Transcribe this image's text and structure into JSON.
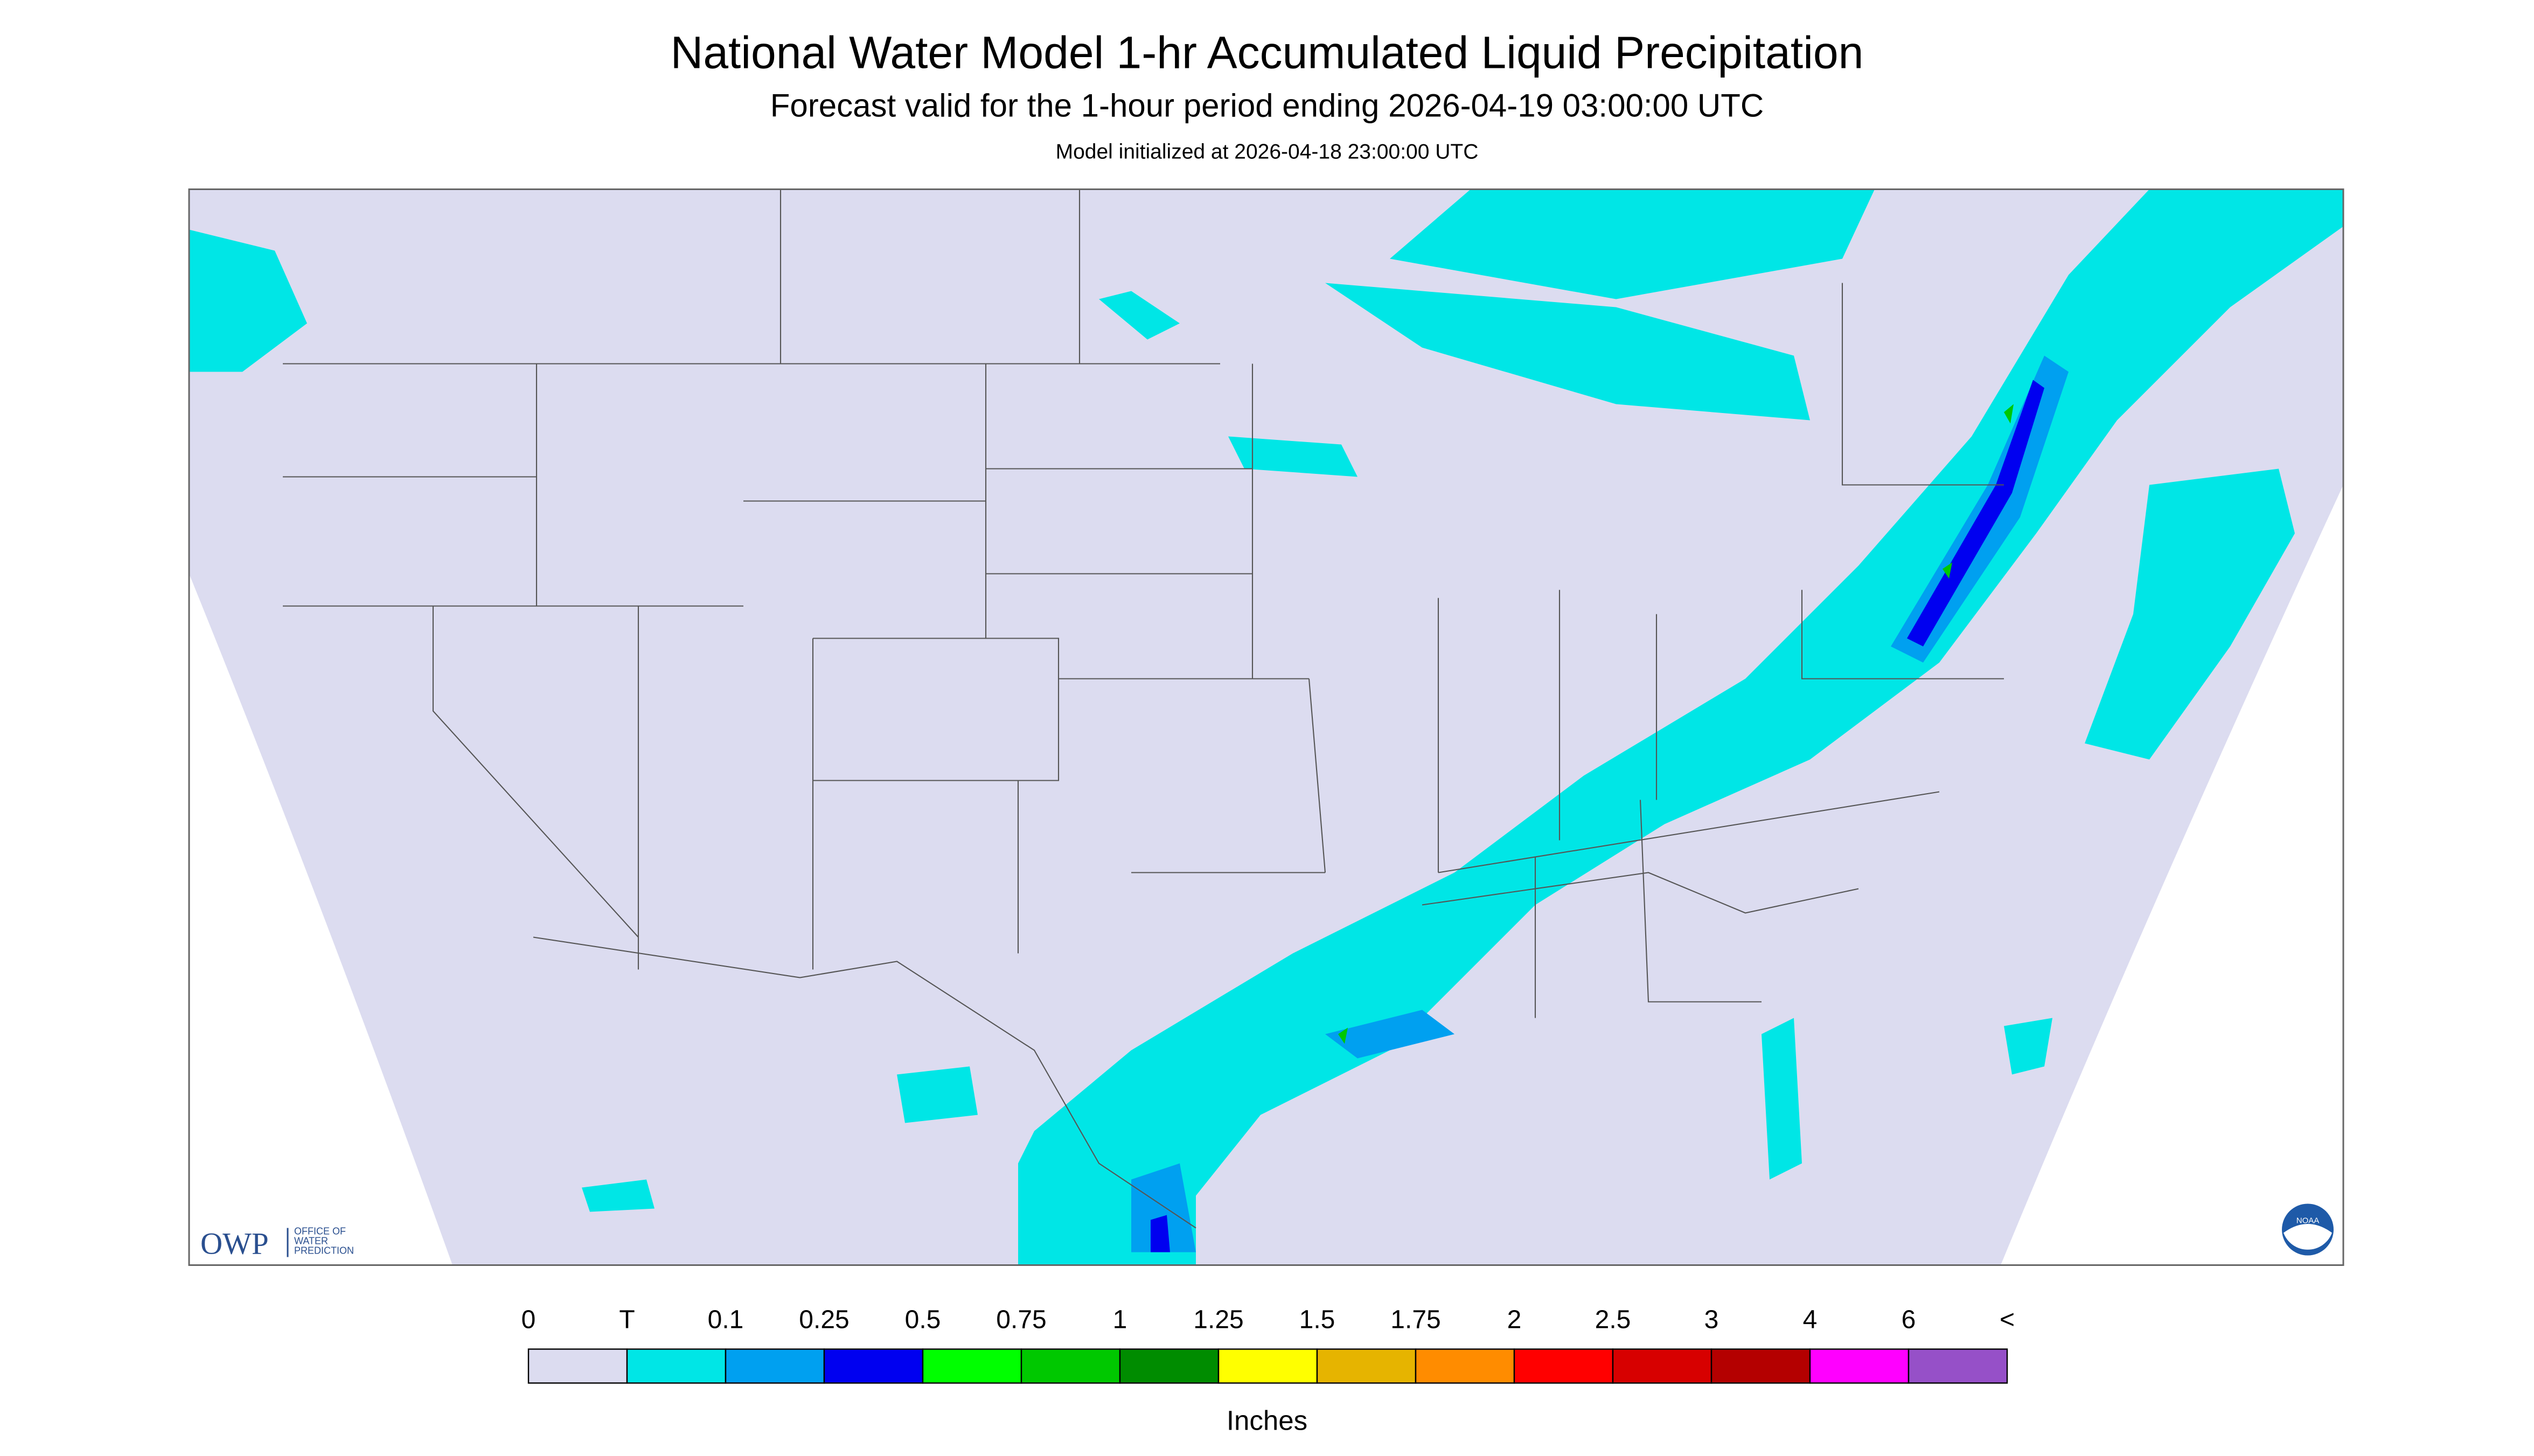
{
  "header": {
    "title": "National Water Model 1-hr Accumulated Liquid Precipitation",
    "subtitle": "Forecast valid for the 1-hour period ending 2026-04-19 03:00:00 UTC",
    "initialized": "Model initialized at 2026-04-18 23:00:00 UTC"
  },
  "legend": {
    "labels": [
      "0",
      "T",
      "0.1",
      "0.25",
      "0.5",
      "0.75",
      "1",
      "1.25",
      "1.5",
      "1.75",
      "2",
      "2.5",
      "3",
      "4",
      "6",
      "<"
    ],
    "colors": [
      "#dcdcf0",
      "#00e6e6",
      "#00a0f0",
      "#0000f0",
      "#00ff00",
      "#00c800",
      "#008c00",
      "#ffff00",
      "#e6b400",
      "#ff8c00",
      "#ff0000",
      "#d70000",
      "#b40000",
      "#ff00ff",
      "#9650c8"
    ],
    "unit": "Inches"
  },
  "logo": {
    "owp": "OWP",
    "owp_lines": [
      "OFFICE OF",
      "WATER",
      "PREDICTION"
    ],
    "noaa": "NOAA"
  }
}
